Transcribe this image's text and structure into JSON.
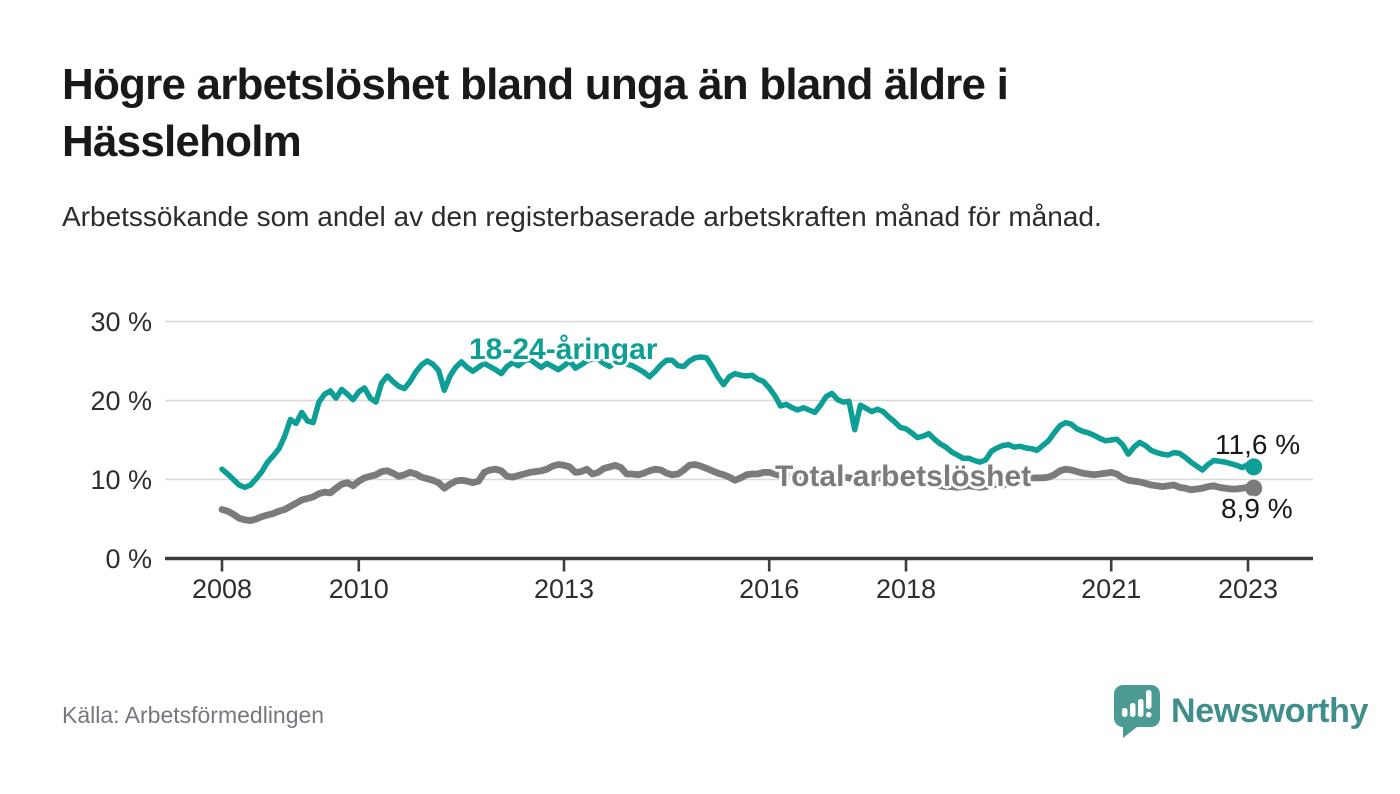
{
  "header": {
    "title": "Högre arbetslöshet bland unga än bland äldre i Hässleholm",
    "subtitle": "Arbetssökande som andel av den registerbaserade arbetskraften månad för månad."
  },
  "footer": {
    "source_label": "Källa: Arbetsförmedlingen",
    "brand_name": "Newsworthy"
  },
  "colors": {
    "accent_teal": "#0d9e95",
    "line_gray": "#7b7b7b",
    "logo_teal": "#3f8e8b",
    "grid_gray": "#d9d9d9",
    "axis_dark": "#3d3d3d",
    "text_dark": "#191919",
    "source_gray": "#75797f"
  },
  "chart_data": {
    "type": "line",
    "title": "Högre arbetslöshet bland unga än bland äldre i Hässleholm",
    "subtitle": "Arbetssökande som andel av den registerbaserade arbetskraften månad för månad.",
    "source": "Källa: Arbetsförmedlingen",
    "x_unit": "month",
    "x_start": {
      "year": 2008,
      "month": 1
    },
    "x_end": {
      "year": 2023,
      "month": 2
    },
    "ylim": [
      0,
      30
    ],
    "grid": "horizontal",
    "legend": "inline-labels",
    "y_ticks": [
      {
        "value": 0,
        "label": "0 %"
      },
      {
        "value": 10,
        "label": "10 %"
      },
      {
        "value": 20,
        "label": "20 %"
      },
      {
        "value": 30,
        "label": "30 %"
      }
    ],
    "x_ticks": [
      {
        "year": 2008,
        "label": "2008"
      },
      {
        "year": 2010,
        "label": "2010"
      },
      {
        "year": 2013,
        "label": "2013"
      },
      {
        "year": 2016,
        "label": "2016"
      },
      {
        "year": 2018,
        "label": "2018"
      },
      {
        "year": 2021,
        "label": "2021"
      },
      {
        "year": 2023,
        "label": "2023"
      }
    ],
    "series": [
      {
        "id": "youth",
        "name": "18-24-åringar",
        "color": "#0d9e95",
        "end_label": "11,6 %",
        "end_value": 11.6,
        "values": [
          11.3,
          10.7,
          10.0,
          9.3,
          9.0,
          9.3,
          10.1,
          11.0,
          12.2,
          13.0,
          13.9,
          15.5,
          17.6,
          17.1,
          18.5,
          17.4,
          17.2,
          19.8,
          20.8,
          21.2,
          20.3,
          21.4,
          20.8,
          20.1,
          21.1,
          21.6,
          20.3,
          19.8,
          22.2,
          23.1,
          22.4,
          21.8,
          21.5,
          22.4,
          23.6,
          24.5,
          25.0,
          24.6,
          23.8,
          21.3,
          23.1,
          24.2,
          24.9,
          24.2,
          23.7,
          24.2,
          24.7,
          24.3,
          23.9,
          23.4,
          24.3,
          24.8,
          24.4,
          25.0,
          25.2,
          24.7,
          24.2,
          24.7,
          24.3,
          23.9,
          24.4,
          25.0,
          24.1,
          24.5,
          25.0,
          25.3,
          25.2,
          24.7,
          24.3,
          24.8,
          25.0,
          24.6,
          24.4,
          24.0,
          23.6,
          23.0,
          23.7,
          24.5,
          25.1,
          25.1,
          24.4,
          24.3,
          25.0,
          25.4,
          25.5,
          25.4,
          24.3,
          23.0,
          22.0,
          23.0,
          23.4,
          23.2,
          23.1,
          23.2,
          22.7,
          22.4,
          21.6,
          20.6,
          19.3,
          19.5,
          19.1,
          18.8,
          19.1,
          18.8,
          18.5,
          19.4,
          20.5,
          20.9,
          20.1,
          19.8,
          19.9,
          16.3,
          19.4,
          19.0,
          18.6,
          18.9,
          18.6,
          17.9,
          17.3,
          16.6,
          16.4,
          15.9,
          15.3,
          15.5,
          15.8,
          15.1,
          14.5,
          14.1,
          13.5,
          13.1,
          12.7,
          12.7,
          12.4,
          12.2,
          12.5,
          13.6,
          14.0,
          14.3,
          14.4,
          14.1,
          14.2,
          14.0,
          13.9,
          13.7,
          14.3,
          14.9,
          15.9,
          16.8,
          17.2,
          17.0,
          16.4,
          16.1,
          15.9,
          15.6,
          15.2,
          14.9,
          15.0,
          15.1,
          14.4,
          13.2,
          14.1,
          14.7,
          14.3,
          13.7,
          13.4,
          13.2,
          13.1,
          13.4,
          13.3,
          12.8,
          12.2,
          11.7,
          11.2,
          11.9,
          12.4,
          12.3,
          12.2,
          12.0,
          11.8,
          11.5,
          11.9,
          11.6
        ]
      },
      {
        "id": "total",
        "name": "Total arbetslöshet",
        "color": "#7b7b7b",
        "end_label": "8,9 %",
        "end_value": 8.9,
        "values": [
          6.2,
          6.0,
          5.6,
          5.1,
          4.9,
          4.8,
          5.0,
          5.3,
          5.5,
          5.7,
          6.0,
          6.2,
          6.6,
          7.0,
          7.4,
          7.6,
          7.8,
          8.2,
          8.4,
          8.3,
          8.9,
          9.4,
          9.6,
          9.2,
          9.8,
          10.2,
          10.4,
          10.6,
          11.0,
          11.1,
          10.8,
          10.4,
          10.6,
          10.9,
          10.7,
          10.3,
          10.1,
          9.9,
          9.6,
          8.9,
          9.4,
          9.8,
          9.9,
          9.8,
          9.6,
          9.8,
          10.9,
          11.2,
          11.3,
          11.1,
          10.4,
          10.3,
          10.5,
          10.7,
          10.9,
          11.0,
          11.1,
          11.3,
          11.7,
          11.9,
          11.8,
          11.6,
          10.9,
          11.0,
          11.3,
          10.7,
          10.9,
          11.4,
          11.6,
          11.8,
          11.5,
          10.7,
          10.7,
          10.6,
          10.8,
          11.1,
          11.3,
          11.2,
          10.8,
          10.6,
          10.7,
          11.2,
          11.8,
          11.9,
          11.7,
          11.4,
          11.1,
          10.8,
          10.6,
          10.3,
          9.9,
          10.2,
          10.6,
          10.7,
          10.7,
          10.9,
          10.9,
          10.7,
          10.5,
          10.4,
          10.3,
          10.2,
          10.3,
          10.4,
          10.3,
          10.4,
          10.5,
          10.5,
          10.5,
          10.3,
          10.2,
          10.1,
          10.0,
          10.0,
          10.1,
          10.2,
          10.1,
          10.0,
          9.9,
          10.0,
          10.0,
          9.8,
          9.6,
          9.5,
          9.4,
          9.3,
          9.2,
          9.1,
          9.1,
          9.0,
          9.1,
          9.2,
          9.1,
          9.0,
          9.1,
          9.3,
          9.4,
          9.3,
          9.5,
          9.6,
          9.8,
          10.0,
          10.2,
          10.2,
          10.2,
          10.3,
          10.6,
          11.1,
          11.3,
          11.2,
          11.0,
          10.8,
          10.7,
          10.6,
          10.7,
          10.8,
          10.9,
          10.7,
          10.2,
          9.9,
          9.8,
          9.7,
          9.5,
          9.3,
          9.2,
          9.1,
          9.2,
          9.3,
          9.0,
          8.9,
          8.7,
          8.8,
          8.9,
          9.1,
          9.2,
          9.0,
          8.9,
          8.8,
          8.8,
          8.9,
          9.0,
          8.9
        ]
      }
    ]
  }
}
